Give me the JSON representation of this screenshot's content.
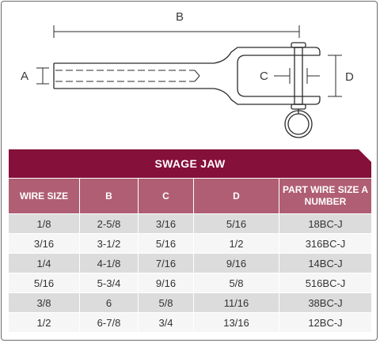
{
  "diagram": {
    "labels": {
      "a": "A",
      "b": "B",
      "c": "C",
      "d": "D"
    }
  },
  "table": {
    "title": "SWAGE JAW",
    "columns": [
      "WIRE SIZE",
      "B",
      "C",
      "D",
      "PART WIRE SIZE A NUMBER"
    ],
    "rows": [
      [
        "1/8",
        "2-5/8",
        "3/16",
        "5/16",
        "18BC-J"
      ],
      [
        "3/16",
        "3-1/2",
        "5/16",
        "1/2",
        "316BC-J"
      ],
      [
        "1/4",
        "4-1/8",
        "7/16",
        "9/16",
        "14BC-J"
      ],
      [
        "5/16",
        "5-3/4",
        "9/16",
        "5/8",
        "516BC-J"
      ],
      [
        "3/8",
        "6",
        "5/8",
        "11/16",
        "38BC-J"
      ],
      [
        "1/2",
        "6-7/8",
        "3/4",
        "13/16",
        "12BC-J"
      ]
    ]
  },
  "colors": {
    "title_bar": "#85103a",
    "header": "#b05e74",
    "row_odd": "#dcdcdc",
    "row_even": "#f6f6f6"
  }
}
